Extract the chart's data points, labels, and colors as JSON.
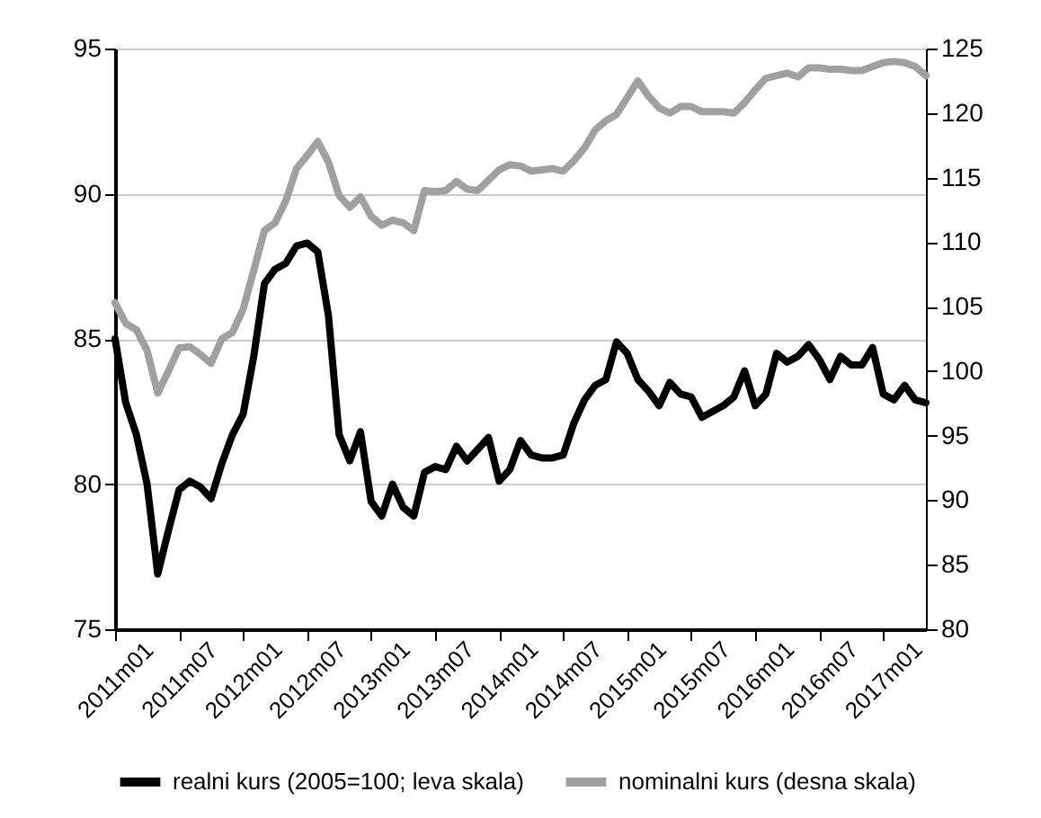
{
  "chart_data": {
    "type": "line",
    "categories": [
      "2011m01",
      null,
      null,
      null,
      null,
      null,
      "2011m07",
      null,
      null,
      null,
      null,
      null,
      "2012m01",
      null,
      null,
      null,
      null,
      null,
      "2012m07",
      null,
      null,
      null,
      null,
      null,
      "2013m01",
      null,
      null,
      null,
      null,
      null,
      "2013m07",
      null,
      null,
      null,
      null,
      null,
      "2014m01",
      null,
      null,
      null,
      null,
      null,
      "2014m07",
      null,
      null,
      null,
      null,
      null,
      "2015m01",
      null,
      null,
      null,
      null,
      null,
      "2015m07",
      null,
      null,
      null,
      null,
      null,
      "2016m01",
      null,
      null,
      null,
      null,
      null,
      "2016m07",
      null,
      null,
      null,
      null,
      null,
      "2017m01",
      null,
      null,
      null,
      null
    ],
    "series": [
      {
        "name": "realni kurs (2005=100; leva skala)",
        "color": "#000000",
        "values": [
          85.0,
          82.8,
          81.7,
          80.0,
          76.9,
          78.4,
          79.8,
          80.1,
          79.9,
          79.5,
          80.7,
          81.7,
          82.4,
          84.4,
          86.9,
          87.4,
          87.6,
          88.2,
          88.3,
          88.0,
          85.8,
          81.7,
          80.8,
          81.8,
          79.4,
          78.9,
          80.0,
          79.2,
          78.9,
          80.4,
          80.6,
          80.5,
          81.3,
          80.8,
          81.2,
          81.6,
          80.1,
          80.5,
          81.5,
          81.0,
          80.9,
          80.9,
          81.0,
          82.1,
          82.9,
          83.4,
          83.6,
          84.9,
          84.5,
          83.6,
          83.2,
          82.7,
          83.5,
          83.1,
          83.0,
          82.3,
          82.5,
          82.7,
          83.0,
          83.9,
          82.7,
          83.1,
          84.5,
          84.2,
          84.4,
          84.8,
          84.3,
          83.6,
          84.4,
          84.1,
          84.1,
          84.7,
          83.1,
          82.9,
          83.4,
          82.9,
          82.8
        ]
      },
      {
        "name": "nominalni kurs (desna skala)",
        "color": "#a0a0a0",
        "axis": "y2",
        "values": [
          105.3,
          103.7,
          103.2,
          101.6,
          98.3,
          100.0,
          101.8,
          101.9,
          101.3,
          100.6,
          102.5,
          103.0,
          104.8,
          107.8,
          110.9,
          111.5,
          113.2,
          115.7,
          116.7,
          117.8,
          116.2,
          113.6,
          112.7,
          113.5,
          112.0,
          111.3,
          111.7,
          111.5,
          110.9,
          114.0,
          113.9,
          114.0,
          114.7,
          114.1,
          114.0,
          114.8,
          115.6,
          116.0,
          115.9,
          115.5,
          115.6,
          115.7,
          115.5,
          116.3,
          117.3,
          118.7,
          119.4,
          119.9,
          121.2,
          122.5,
          121.3,
          120.4,
          120.0,
          120.5,
          120.5,
          120.1,
          120.1,
          120.1,
          120.0,
          120.8,
          121.8,
          122.7,
          122.9,
          123.1,
          122.8,
          123.5,
          123.5,
          123.4,
          123.4,
          123.3,
          123.3,
          123.6,
          123.9,
          124.0,
          123.9,
          123.6,
          122.9
        ]
      }
    ],
    "ylim": [
      75,
      95
    ],
    "yticks": [
      75,
      80,
      85,
      90,
      95
    ],
    "y2lim": [
      80,
      125
    ],
    "y2ticks": [
      80,
      85,
      90,
      95,
      100,
      105,
      110,
      115,
      120,
      125
    ],
    "grid": "y",
    "legend": "bottom",
    "line_style": "solid",
    "marker": "none"
  }
}
